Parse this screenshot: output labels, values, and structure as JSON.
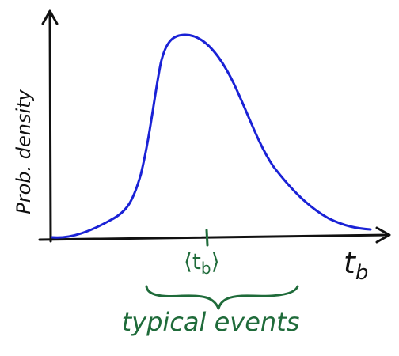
{
  "axes": {
    "y_label": "Prob. density",
    "x_label_main": "t",
    "x_label_sub": "b"
  },
  "annotation": {
    "mean_text": "⟨t",
    "mean_sub": "b",
    "mean_close": "⟩",
    "range_label": "typical events"
  },
  "colors": {
    "axis": "#111111",
    "curve": "#1a22d6",
    "annotation": "#1f6b3a"
  }
}
